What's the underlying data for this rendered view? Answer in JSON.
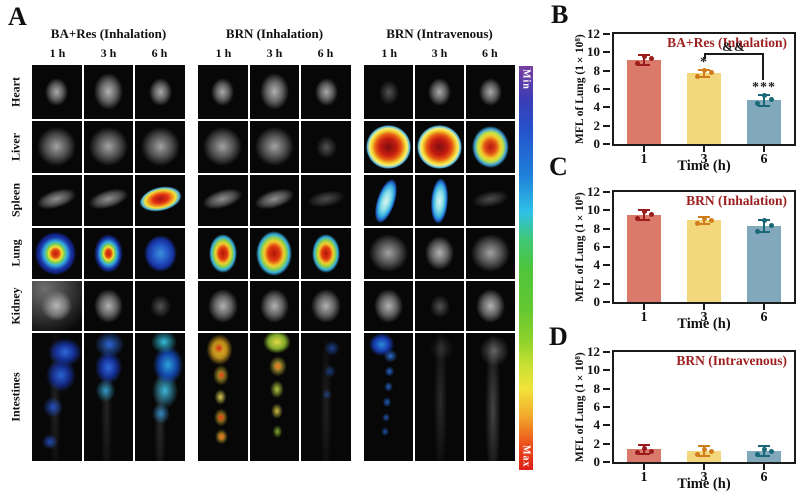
{
  "panel_a": {
    "label": "A",
    "groups": [
      {
        "name": "BA+Res (Inhalation)",
        "times": [
          "1 h",
          "3 h",
          "6 h"
        ]
      },
      {
        "name": "BRN (Inhalation)",
        "times": [
          "1 h",
          "3 h",
          "6 h"
        ]
      },
      {
        "name": "BRN (Intravenous)",
        "times": [
          "1 h",
          "3 h",
          "6 h"
        ]
      }
    ],
    "organ_rows": [
      {
        "name": "Heart",
        "cells": [
          "gray-sm",
          "gray-md",
          "gray-sm",
          "gray-sm",
          "gray-md",
          "gray-sm",
          "gray-dim",
          "gray-sm",
          "gray-sm"
        ]
      },
      {
        "name": "Liver",
        "cells": [
          "gray-lg",
          "gray-lg",
          "gray-lg",
          "gray-lg",
          "gray-lg",
          "gray-dim",
          "heat-full",
          "heat-full",
          "heat-med"
        ]
      },
      {
        "name": "Spleen",
        "cells": [
          "gray-strip",
          "gray-strip",
          "heat-strip",
          "gray-strip",
          "gray-strip",
          "gray-dim-strip",
          "cyan-strip",
          "cyan-strip2",
          "gray-dim-strip"
        ]
      },
      {
        "name": "Lung",
        "cells": [
          "blueheat-lg",
          "blueheat-md",
          "blue-blob",
          "redheat-sm",
          "redheat-lg",
          "redheat-sm",
          "gray-lg",
          "gray-md",
          "gray-lg"
        ]
      },
      {
        "name": "Kidney",
        "cells": [
          "gray-bright",
          "gray-md",
          "gray-dim",
          "gray-md",
          "gray-md",
          "gray-md",
          "gray-md",
          "gray-dim",
          "gray-md"
        ]
      },
      {
        "name": "Intestines",
        "cells": [
          "int-blue",
          "int-blue2",
          "int-cyan",
          "int-hot",
          "int-warm",
          "int-faint",
          "int-bluechain",
          "int-gray",
          "int-gray2"
        ]
      }
    ],
    "colorbar": {
      "min_label": "Min",
      "max_label": "Max",
      "gradient_top_to_bottom": [
        "#7a3fa0",
        "#2553cc",
        "#1f7fd8",
        "#2fc0e8",
        "#4ec43c",
        "#8ed22a",
        "#f2e33a",
        "#f2a52a",
        "#ea4c1a",
        "#de1f18"
      ]
    }
  },
  "chart_data": [
    {
      "panel": "B",
      "type": "bar",
      "title": "BA+Res (Inhalation)",
      "ylabel": "MFL of Lung (1×10⁸)",
      "xlabel": "Time (h)",
      "categories": [
        "1",
        "3",
        "6"
      ],
      "values": [
        9.2,
        7.7,
        4.8
      ],
      "errors": [
        0.55,
        0.4,
        0.6
      ],
      "points": [
        [
          8.75,
          9.3,
          9.5
        ],
        [
          7.4,
          7.75,
          8.05
        ],
        [
          4.4,
          4.85,
          5.3
        ]
      ],
      "yticks": [
        0,
        2,
        4,
        6,
        8,
        10,
        12
      ],
      "ylim": [
        0,
        12
      ],
      "annotations": {
        "bar_labels": [
          "",
          "*",
          "***"
        ],
        "bracket": {
          "from": 1,
          "to": 2,
          "label": "&&"
        }
      }
    },
    {
      "panel": "C",
      "type": "bar",
      "title": "BRN (Inhalation)",
      "ylabel": "MFL of Lung (1×10⁸)",
      "xlabel": "Time (h)",
      "categories": [
        "1",
        "3",
        "6"
      ],
      "values": [
        9.5,
        8.9,
        8.3
      ],
      "errors": [
        0.5,
        0.4,
        0.65
      ],
      "points": [
        [
          9.1,
          9.5,
          9.9
        ],
        [
          8.6,
          8.9,
          9.15
        ],
        [
          7.7,
          8.3,
          8.85
        ]
      ],
      "yticks": [
        0,
        2,
        4,
        6,
        8,
        10,
        12
      ],
      "ylim": [
        0,
        12
      ],
      "annotations": null
    },
    {
      "panel": "D",
      "type": "bar",
      "title": "BRN (Intravenous)",
      "ylabel": "MFL of Lung (1×10⁸)",
      "xlabel": "Time (h)",
      "categories": [
        "1",
        "3",
        "6"
      ],
      "values": [
        1.4,
        1.2,
        1.2
      ],
      "errors": [
        0.5,
        0.5,
        0.5
      ],
      "points": [
        [
          1.0,
          1.15,
          1.45
        ],
        [
          0.85,
          1.1,
          1.35
        ],
        [
          0.85,
          1.1,
          1.35
        ]
      ],
      "yticks": [
        0,
        2,
        4,
        6,
        8,
        10,
        12
      ],
      "ylim": [
        0,
        12
      ],
      "annotations": null
    }
  ],
  "palette": {
    "bar_colors": [
      "#d97a6b",
      "#f2d77c",
      "#82a8bc"
    ],
    "point_colors": [
      "#9b1c1c",
      "#d07c1a",
      "#186878"
    ],
    "title_color": "#9e1f1f",
    "axis_color": "#1a1a1a"
  }
}
